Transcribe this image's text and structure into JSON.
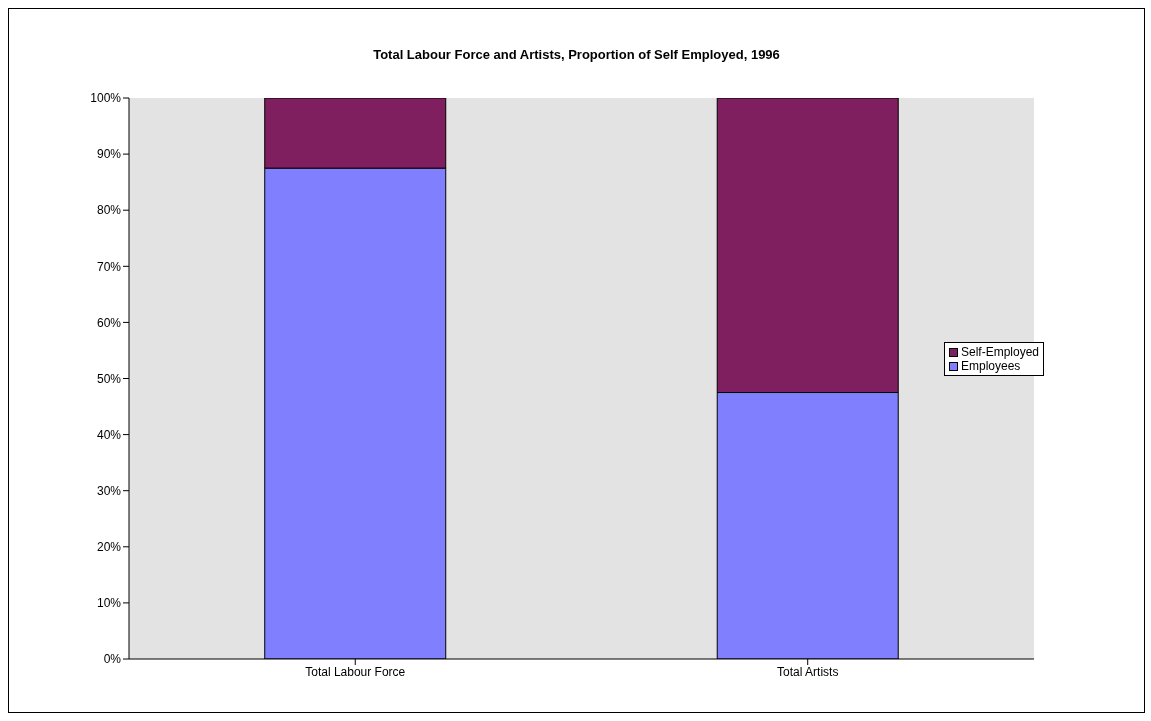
{
  "chart_data": {
    "type": "bar",
    "title": "Total Labour Force and Artists, Proportion of Self Employed, 1996",
    "categories": [
      "Total Labour Force",
      "Total Artists"
    ],
    "stacked": true,
    "series": [
      {
        "name": "Employees",
        "color": "#8080ff",
        "values": [
          87.5,
          47.5
        ]
      },
      {
        "name": "Self-Employed",
        "color": "#7f1f5f",
        "values": [
          12.5,
          52.5
        ]
      }
    ],
    "ylim": [
      0,
      100
    ],
    "yticks": [
      {
        "value": 0,
        "label": "0%"
      },
      {
        "value": 10,
        "label": "10%"
      },
      {
        "value": 20,
        "label": "20%"
      },
      {
        "value": 30,
        "label": "30%"
      },
      {
        "value": 40,
        "label": "40%"
      },
      {
        "value": 50,
        "label": "50%"
      },
      {
        "value": 60,
        "label": "60%"
      },
      {
        "value": 70,
        "label": "70%"
      },
      {
        "value": 80,
        "label": "80%"
      },
      {
        "value": 90,
        "label": "90%"
      },
      {
        "value": 100,
        "label": "100%"
      }
    ],
    "legend": "right"
  }
}
